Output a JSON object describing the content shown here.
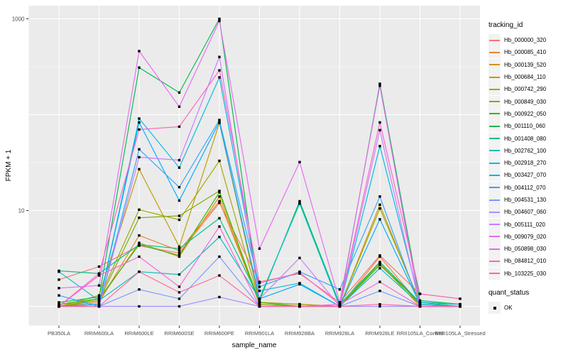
{
  "colors": {
    "panel_background": "#EBEBEB",
    "gridline": "#FFFFFF",
    "axis_text": "#4D4D4D",
    "axis_title": "#000000",
    "point": "#000000",
    "legend_key_background": "#F2F2F2"
  },
  "legend": {
    "color_title": "tracking_id",
    "shape_title": "quant_status",
    "shape_items": [
      {
        "label": "OK",
        "shape": "filled-square"
      }
    ]
  },
  "chart_data": {
    "type": "line",
    "title": "",
    "xlabel": "sample_name",
    "ylabel": "FPKM + 1",
    "y_scale": "log10",
    "ylim": [
      0.63,
      1585
    ],
    "grid": true,
    "legend_position": "right",
    "point_shape": "square",
    "y_ticks": [
      {
        "value": 1000,
        "label": "1000"
      },
      {
        "value": 10,
        "label": "10"
      }
    ],
    "y_major_gridlines": [
      1,
      10,
      100,
      1000
    ],
    "y_minor_gridlines": [
      3.162,
      31.62,
      316.2
    ],
    "categories": [
      "PB350LA",
      "RRIM600LA",
      "RRIM600LE",
      "RRIM600SE",
      "RRIM600PE",
      "RRIM901LA",
      "RRIM928BA",
      "RRIM928LA",
      "RRIM928LE",
      "RRII105LA_Control",
      "RRII105LA_Stressed"
    ],
    "series": [
      {
        "name": "Hb_000000_320",
        "color": "#F8766D",
        "quant_status": "OK",
        "values": [
          1.9,
          2.6,
          4.3,
          3.6,
          12,
          1.8,
          2.2,
          1.1,
          3.4,
          1.35,
          1.2
        ]
      },
      {
        "name": "Hb_000085_410",
        "color": "#EA8331",
        "quant_status": "OK",
        "values": [
          1.0,
          1.1,
          5.5,
          3.8,
          12.5,
          1.1,
          1.05,
          1.0,
          3.3,
          1.05,
          1.0
        ]
      },
      {
        "name": "Hb_000139_520",
        "color": "#D89000",
        "quant_status": "OK",
        "values": [
          1.0,
          1.15,
          4.6,
          3.3,
          14,
          1.05,
          1.0,
          1.0,
          2.8,
          1.0,
          1.0
        ]
      },
      {
        "name": "Hb_000684_110",
        "color": "#C09B00",
        "quant_status": "OK",
        "values": [
          1.0,
          1.3,
          27,
          4.2,
          82,
          1.1,
          1.05,
          1.0,
          11.5,
          1.05,
          1.0
        ]
      },
      {
        "name": "Hb_000742_290",
        "color": "#A3A500",
        "quant_status": "OK",
        "values": [
          1.0,
          1.2,
          10.2,
          8.0,
          33,
          1.1,
          1.05,
          1.0,
          10.5,
          1.1,
          1.05
        ]
      },
      {
        "name": "Hb_000849_030",
        "color": "#7CAE00",
        "quant_status": "OK",
        "values": [
          1.0,
          1.15,
          8.4,
          8.8,
          16,
          1.05,
          1.0,
          1.0,
          2.9,
          1.05,
          1.0
        ]
      },
      {
        "name": "Hb_000922_050",
        "color": "#39B600",
        "quant_status": "OK",
        "values": [
          1.05,
          1.2,
          4.4,
          3.4,
          15.5,
          1.1,
          1.0,
          1.0,
          2.7,
          1.1,
          1.05
        ]
      },
      {
        "name": "Hb_001110_060",
        "color": "#00BB4E",
        "quant_status": "OK",
        "values": [
          1.1,
          1.25,
          310,
          170,
          1000,
          1.15,
          12.5,
          1.05,
          210,
          1.15,
          1.05
        ]
      },
      {
        "name": "Hb_001408_080",
        "color": "#00C087",
        "quant_status": "OK",
        "values": [
          2.35,
          2.2,
          4.4,
          4.0,
          8.3,
          1.2,
          12,
          1.05,
          2.9,
          1.1,
          1.0
        ]
      },
      {
        "name": "Hb_002762_100",
        "color": "#00BFC4",
        "quant_status": "OK",
        "values": [
          2.3,
          1.15,
          2.3,
          2.15,
          5.3,
          1.2,
          11.8,
          1.0,
          2.5,
          1.05,
          1.0
        ]
      },
      {
        "name": "Hb_002918_270",
        "color": "#00BAE0",
        "quant_status": "OK",
        "values": [
          1.0,
          1.05,
          91,
          28,
          245,
          1.45,
          1.75,
          1.0,
          47,
          1.1,
          1.05
        ]
      },
      {
        "name": "Hb_003427_070",
        "color": "#00ACFC",
        "quant_status": "OK",
        "values": [
          1.0,
          1.05,
          83,
          12.7,
          84,
          1.2,
          1.7,
          1.0,
          8.1,
          1.05,
          1.0
        ]
      },
      {
        "name": "Hb_004112_070",
        "color": "#35A2FF",
        "quant_status": "OK",
        "values": [
          1.3,
          1.0,
          43.5,
          17.5,
          88,
          1.6,
          2.3,
          1.5,
          14,
          1.0,
          1.0
        ]
      },
      {
        "name": "Hb_004531_130",
        "color": "#7C96FF",
        "quant_status": "OK",
        "values": [
          1.0,
          1.0,
          1.5,
          1.2,
          3.3,
          1.0,
          1.0,
          1.0,
          1.45,
          1.0,
          1.0
        ]
      },
      {
        "name": "Hb_004607_060",
        "color": "#A98FFF",
        "quant_status": "OK",
        "values": [
          1.0,
          1.0,
          1.0,
          1.0,
          1.25,
          1.0,
          1.0,
          1.0,
          1.0,
          1.0,
          1.0
        ]
      },
      {
        "name": "Hb_005111_020",
        "color": "#C77CFF",
        "quant_status": "OK",
        "values": [
          1.0,
          1.0,
          36,
          33.5,
          400,
          1.2,
          3.2,
          1.0,
          69,
          1.0,
          1.0
        ]
      },
      {
        "name": "Hb_009079_020",
        "color": "#E76BF3",
        "quant_status": "OK",
        "values": [
          1.55,
          1.65,
          460,
          121,
          950,
          4.0,
          32,
          1.1,
          200,
          1.0,
          1.0
        ]
      },
      {
        "name": "Hb_050898_030",
        "color": "#FA62DB",
        "quant_status": "OK",
        "values": [
          1.0,
          2.1,
          3.3,
          1.6,
          6.8,
          1.0,
          1.0,
          1.05,
          1.8,
          1.0,
          1.0
        ]
      },
      {
        "name": "Hb_084812_010",
        "color": "#FF61C9",
        "quant_status": "OK",
        "values": [
          1.0,
          2.2,
          70,
          75,
          290,
          1.75,
          2.25,
          1.05,
          83,
          1.35,
          1.2
        ]
      },
      {
        "name": "Hb_103225_030",
        "color": "#FF689E",
        "quant_status": "OK",
        "values": [
          1.0,
          1.0,
          2.3,
          1.4,
          2.1,
          1.0,
          1.0,
          1.0,
          1.05,
          1.0,
          1.0
        ]
      }
    ]
  }
}
